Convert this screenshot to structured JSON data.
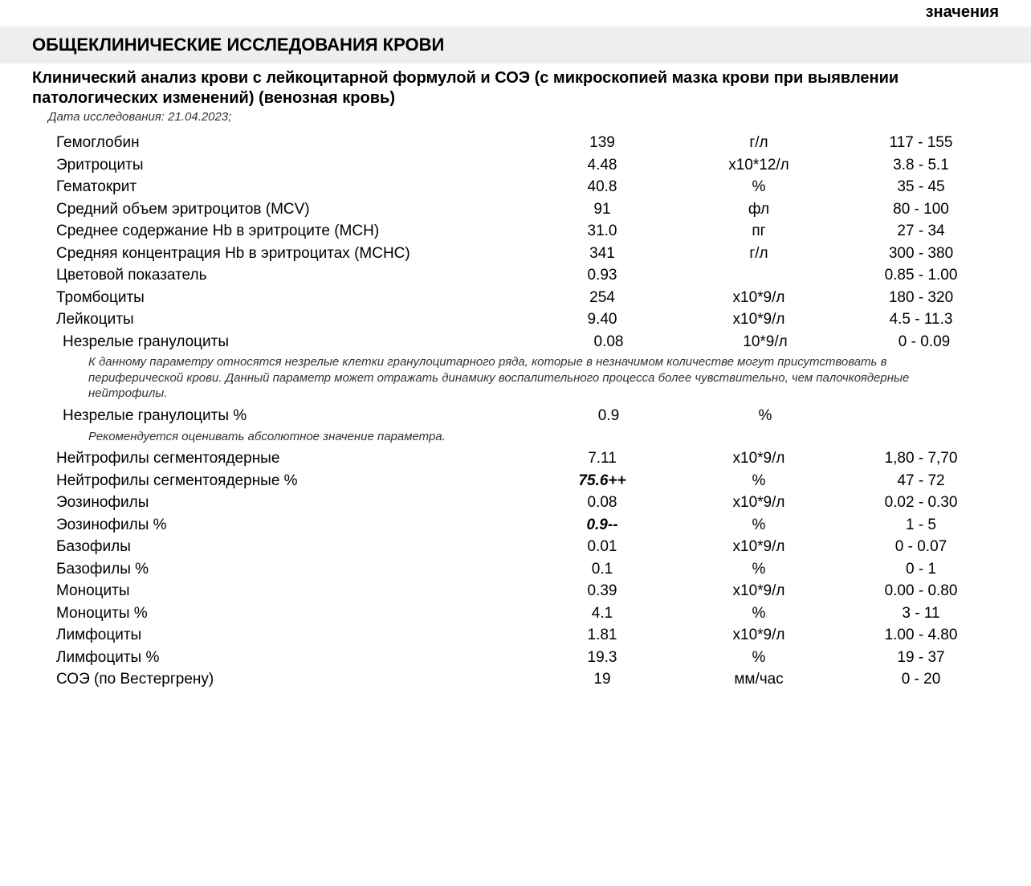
{
  "header": {
    "top_right": "значения",
    "section_title": "ОБЩЕКЛИНИЧЕСКИЕ ИССЛЕДОВАНИЯ КРОВИ",
    "subtitle": "Клинический анализ крови с лейкоцитарной формулой и СОЭ (с микроскопией мазка крови при выявлении патологических изменений) (венозная кровь)",
    "date_line": "Дата исследования: 21.04.2023;"
  },
  "rows": [
    {
      "type": "param",
      "name": "Гемоглобин",
      "value": "139",
      "unit": "г/л",
      "ref": "117 - 155",
      "indent": false,
      "flag": false
    },
    {
      "type": "param",
      "name": "Эритроциты",
      "value": "4.48",
      "unit": "х10*12/л",
      "ref": "3.8 - 5.1",
      "indent": false,
      "flag": false
    },
    {
      "type": "param",
      "name": "Гематокрит",
      "value": "40.8",
      "unit": "%",
      "ref": "35 - 45",
      "indent": false,
      "flag": false
    },
    {
      "type": "param",
      "name": "Средний объем эритроцитов (MCV)",
      "value": "91",
      "unit": "фл",
      "ref": "80 - 100",
      "indent": false,
      "flag": false
    },
    {
      "type": "param",
      "name": "Среднее содержание Hb в эритроците (MCH)",
      "value": "31.0",
      "unit": "пг",
      "ref": "27 - 34",
      "indent": false,
      "flag": false
    },
    {
      "type": "param",
      "name": "Средняя концентрация Hb в эритроцитах (MCHC)",
      "value": "341",
      "unit": "г/л",
      "ref": "300 - 380",
      "indent": false,
      "flag": false
    },
    {
      "type": "param",
      "name": "Цветовой показатель",
      "value": "0.93",
      "unit": "",
      "ref": "0.85 - 1.00",
      "indent": false,
      "flag": false
    },
    {
      "type": "param",
      "name": "Тромбоциты",
      "value": "254",
      "unit": "х10*9/л",
      "ref": "180 - 320",
      "indent": false,
      "flag": false
    },
    {
      "type": "param",
      "name": "Лейкоциты",
      "value": "9.40",
      "unit": "х10*9/л",
      "ref": "4.5 - 11.3",
      "indent": false,
      "flag": false
    },
    {
      "type": "param",
      "name": "Незрелые гранулоциты",
      "value": "0.08",
      "unit": "10*9/л",
      "ref": "0 - 0.09",
      "indent": true,
      "flag": false
    },
    {
      "type": "note",
      "text": "К данному параметру относятся незрелые клетки гранулоцитарного ряда, которые  в незначимом количестве могут присутствовать в периферической крови. Данный параметр может отражать динамику воспалительного процесса более чувствительно, чем палочкоядерные нейтрофилы."
    },
    {
      "type": "param",
      "name": "Незрелые гранулоциты %",
      "value": "0.9",
      "unit": "%",
      "ref": "",
      "indent": true,
      "flag": false
    },
    {
      "type": "note",
      "text": "Рекомендуется оценивать абсолютное значение параметра."
    },
    {
      "type": "param",
      "name": "Нейтрофилы сегментоядерные",
      "value": "7.11",
      "unit": "х10*9/л",
      "ref": "1,80 - 7,70",
      "indent": false,
      "flag": false
    },
    {
      "type": "param",
      "name": "Нейтрофилы сегментоядерные %",
      "value": "75.6++",
      "unit": "%",
      "ref": "47 - 72",
      "indent": false,
      "flag": true
    },
    {
      "type": "param",
      "name": "Эозинофилы",
      "value": "0.08",
      "unit": "х10*9/л",
      "ref": "0.02 - 0.30",
      "indent": false,
      "flag": false
    },
    {
      "type": "param",
      "name": "Эозинофилы %",
      "value": "0.9--",
      "unit": "%",
      "ref": "1 - 5",
      "indent": false,
      "flag": true
    },
    {
      "type": "param",
      "name": "Базофилы",
      "value": "0.01",
      "unit": "х10*9/л",
      "ref": "0 - 0.07",
      "indent": false,
      "flag": false
    },
    {
      "type": "param",
      "name": "Базофилы %",
      "value": "0.1",
      "unit": "%",
      "ref": "0 - 1",
      "indent": false,
      "flag": false
    },
    {
      "type": "param",
      "name": "Моноциты",
      "value": "0.39",
      "unit": "х10*9/л",
      "ref": "0.00 - 0.80",
      "indent": false,
      "flag": false
    },
    {
      "type": "param",
      "name": "Моноциты %",
      "value": "4.1",
      "unit": "%",
      "ref": "3 - 11",
      "indent": false,
      "flag": false
    },
    {
      "type": "param",
      "name": "Лимфоциты",
      "value": "1.81",
      "unit": "х10*9/л",
      "ref": "1.00 - 4.80",
      "indent": false,
      "flag": false
    },
    {
      "type": "param",
      "name": "Лимфоциты %",
      "value": "19.3",
      "unit": "%",
      "ref": "19 - 37",
      "indent": false,
      "flag": false
    },
    {
      "type": "param",
      "name": "СОЭ (по Вестергрену)",
      "value": "19",
      "unit": "мм/час",
      "ref": "0 - 20",
      "indent": false,
      "flag": false
    }
  ]
}
